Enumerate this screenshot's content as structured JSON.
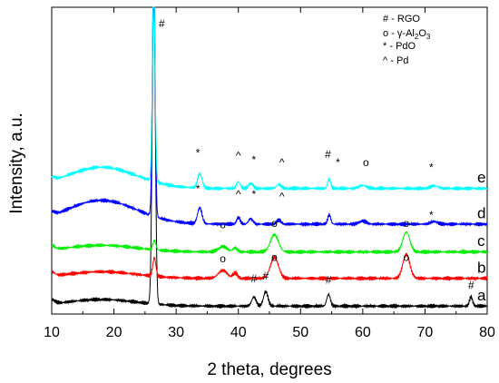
{
  "chart_data": {
    "type": "line",
    "xlabel": "2 theta, degrees",
    "ylabel": "Intensity, a.u.",
    "xlim": [
      10,
      80
    ],
    "x_ticks": [
      "10",
      "20",
      "30",
      "40",
      "50",
      "60",
      "70",
      "80"
    ],
    "grid": false,
    "legend": {
      "placement": "top-right",
      "entries": [
        {
          "symbol": "#",
          "sep": " - ",
          "label": "RGO"
        },
        {
          "symbol": "o",
          "sep": " - ",
          "label": "γ-Al",
          "sub1": "2",
          "mid": "O",
          "sub2": "3"
        },
        {
          "symbol": "*",
          "sep": " - ",
          "label": "PdO"
        },
        {
          "symbol": "^",
          "sep": " - ",
          "label": "Pd"
        }
      ]
    },
    "series": [
      {
        "name": "a",
        "color": "#000000",
        "base": 0.0,
        "hump": 0.25,
        "peaks": [
          [
            26.4,
            12.0,
            0.35
          ],
          [
            42.5,
            0.35,
            0.5
          ],
          [
            44.4,
            0.55,
            0.5
          ],
          [
            54.5,
            0.45,
            0.4
          ],
          [
            77.4,
            0.35,
            0.35
          ]
        ]
      },
      {
        "name": "b",
        "color": "#ff0000",
        "base": 1.05,
        "hump": 0.25,
        "peaks": [
          [
            26.5,
            0.7,
            0.35
          ],
          [
            37.5,
            0.3,
            1.0
          ],
          [
            39.5,
            0.2,
            0.5
          ],
          [
            45.8,
            0.8,
            0.9
          ],
          [
            67.0,
            0.9,
            0.8
          ]
        ]
      },
      {
        "name": "c",
        "color": "#00ee00",
        "base": 2.05,
        "hump": 0.25,
        "peaks": [
          [
            26.5,
            0.35,
            0.35
          ],
          [
            37.5,
            0.2,
            1.0
          ],
          [
            39.5,
            0.15,
            0.5
          ],
          [
            45.8,
            0.65,
            0.9
          ],
          [
            67.0,
            0.75,
            0.8
          ]
        ]
      },
      {
        "name": "d",
        "color": "#0000ff",
        "base": 3.1,
        "hump": 0.9,
        "peaks": [
          [
            26.4,
            10.0,
            0.3
          ],
          [
            33.8,
            0.6,
            0.5
          ],
          [
            40.0,
            0.25,
            0.4
          ],
          [
            42.0,
            0.2,
            0.5
          ],
          [
            46.5,
            0.15,
            0.5
          ],
          [
            54.6,
            0.35,
            0.35
          ],
          [
            60.0,
            0.12,
            0.8
          ],
          [
            71.5,
            0.1,
            0.8
          ]
        ]
      },
      {
        "name": "e",
        "color": "#00ffff",
        "base": 4.45,
        "hump": 0.8,
        "peaks": [
          [
            26.4,
            7.5,
            0.3
          ],
          [
            33.8,
            0.55,
            0.5
          ],
          [
            40.0,
            0.25,
            0.4
          ],
          [
            42.0,
            0.2,
            0.5
          ],
          [
            46.5,
            0.15,
            0.5
          ],
          [
            54.6,
            0.35,
            0.35
          ],
          [
            60.0,
            0.12,
            0.8
          ],
          [
            71.5,
            0.1,
            0.8
          ]
        ]
      }
    ],
    "annotations": [
      {
        "text": "#",
        "x": 27.7,
        "y": 10.55
      },
      {
        "text": "#",
        "x": 42.5,
        "y": 0.9
      },
      {
        "text": "#",
        "x": 44.4,
        "y": 1.0
      },
      {
        "text": "#",
        "x": 54.5,
        "y": 0.85
      },
      {
        "text": "#",
        "x": 77.4,
        "y": 0.65
      },
      {
        "text": "o",
        "x": 37.5,
        "y": 1.65
      },
      {
        "text": "o",
        "x": 45.8,
        "y": 1.7
      },
      {
        "text": "o",
        "x": 67.0,
        "y": 1.7
      },
      {
        "text": "o",
        "x": 37.5,
        "y": 2.95
      },
      {
        "text": "o",
        "x": 45.8,
        "y": 3.0
      },
      {
        "text": "o",
        "x": 67.0,
        "y": 3.0
      },
      {
        "text": "*",
        "x": 33.5,
        "y": 4.3
      },
      {
        "text": "^",
        "x": 40.0,
        "y": 4.1
      },
      {
        "text": "*",
        "x": 42.5,
        "y": 4.1
      },
      {
        "text": "^",
        "x": 47.0,
        "y": 4.0
      },
      {
        "text": "*",
        "x": 71.0,
        "y": 3.3
      },
      {
        "text": "*",
        "x": 33.5,
        "y": 5.65
      },
      {
        "text": "^",
        "x": 40.0,
        "y": 5.55
      },
      {
        "text": "*",
        "x": 42.5,
        "y": 5.4
      },
      {
        "text": "^",
        "x": 47.0,
        "y": 5.3
      },
      {
        "text": "#",
        "x": 54.4,
        "y": 5.6
      },
      {
        "text": "*",
        "x": 56.0,
        "y": 5.3
      },
      {
        "text": "o",
        "x": 60.5,
        "y": 5.3
      },
      {
        "text": "*",
        "x": 71.0,
        "y": 5.1
      }
    ]
  }
}
